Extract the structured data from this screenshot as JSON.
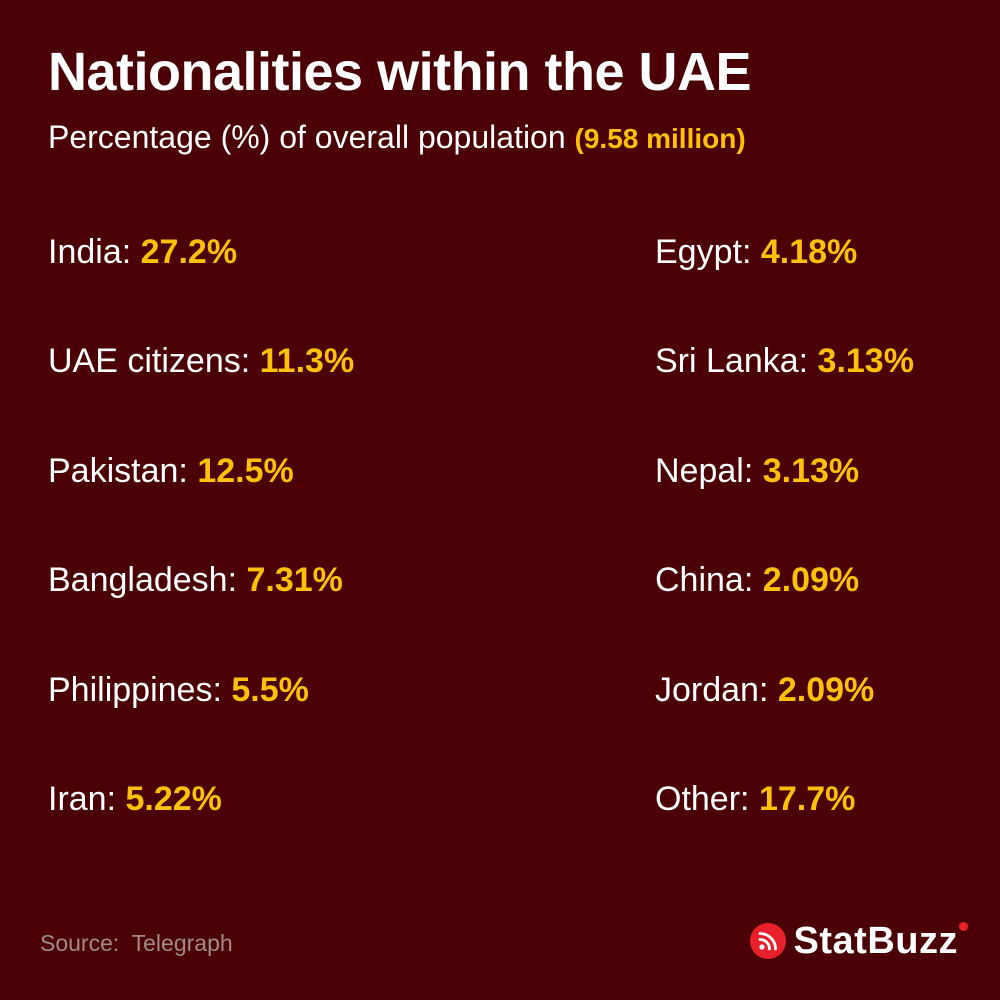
{
  "header": {
    "title": "Nationalities within the UAE",
    "subtitle": "Percentage (%) of overall population",
    "total": "(9.58 million)"
  },
  "left_column": [
    {
      "label": "India:",
      "value": "27.2%"
    },
    {
      "label": "UAE citizens:",
      "value": "11.3%"
    },
    {
      "label": "Pakistan:",
      "value": "12.5%"
    },
    {
      "label": "Bangladesh:",
      "value": "7.31%"
    },
    {
      "label": "Philippines:",
      "value": "5.5%"
    },
    {
      "label": "Iran:",
      "value": "5.22%"
    }
  ],
  "right_column": [
    {
      "label": "Egypt:",
      "value": "4.18%"
    },
    {
      "label": "Sri Lanka:",
      "value": "3.13%"
    },
    {
      "label": "Nepal:",
      "value": "3.13%"
    },
    {
      "label": "China:",
      "value": "2.09%"
    },
    {
      "label": "Jordan:",
      "value": "2.09%"
    },
    {
      "label": "Other:",
      "value": "17.7%"
    }
  ],
  "footer": {
    "source": "Source:  Telegraph",
    "brand": "StatBuzz",
    "brand_icon": "rss-icon"
  },
  "colors": {
    "background": "#4a0004",
    "accent": "#ffc107",
    "brand_red": "#e8202a"
  }
}
